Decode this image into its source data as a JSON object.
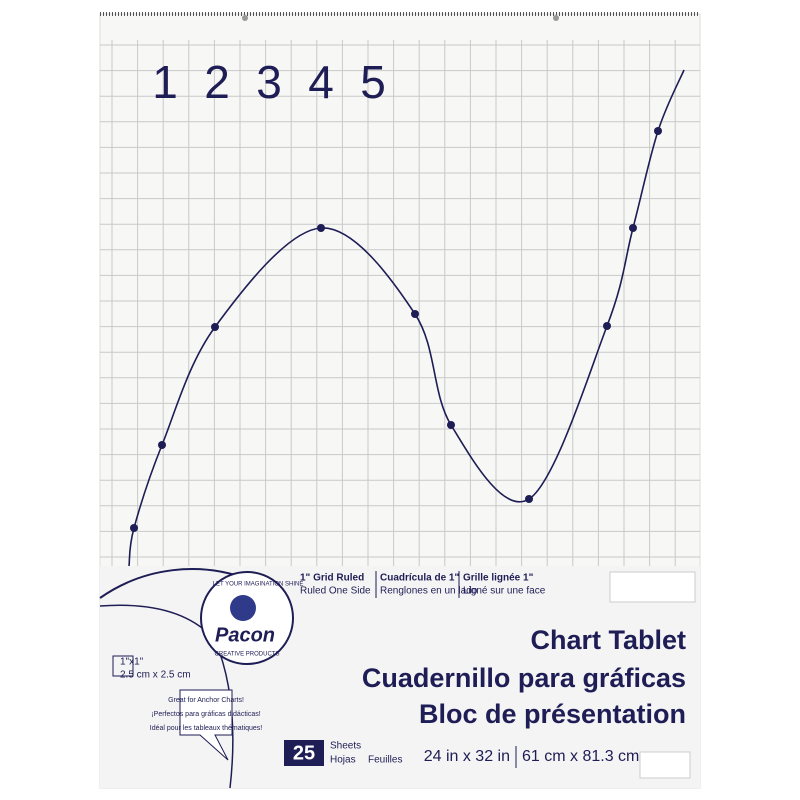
{
  "numbers": [
    "1",
    "2",
    "3",
    "4",
    "5"
  ],
  "features": [
    {
      "title": "1\" Grid Ruled",
      "detail": "Ruled One Side"
    },
    {
      "title": "Cuadrícula de 1\"",
      "detail": "Renglones en un lado"
    },
    {
      "title": "Grille lignée 1\"",
      "detail": "Ligné sur une face"
    }
  ],
  "brand": {
    "tagline": "LET YOUR IMAGINATION SHINE",
    "name": "Pacon",
    "sub": "CREATIVE PRODUCTS"
  },
  "grid_size": {
    "imperial": "1\"x1\"",
    "metric": "2.5 cm x 2.5 cm"
  },
  "callout": [
    "Great for Anchor Charts!",
    "¡Perfectos para gráficas didácticas!",
    "Idéal pour les tableaux thématiques!"
  ],
  "titles": [
    "Chart Tablet",
    "Cuadernillo para gráficas",
    "Bloc de présentation"
  ],
  "count": {
    "number": "25",
    "units_1": "Sheets",
    "units_2": "Hojas",
    "units_3": "Feuilles"
  },
  "size": {
    "imperial": "24 in x 32 in",
    "metric": "61 cm x 81.3 cm"
  }
}
